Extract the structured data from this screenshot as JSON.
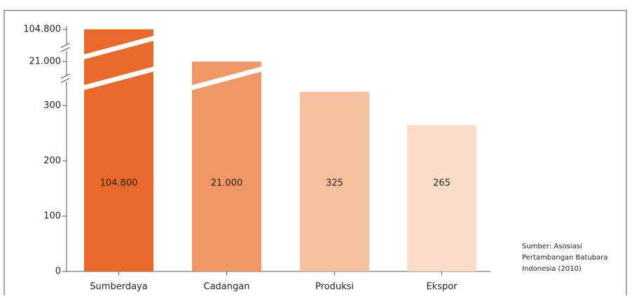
{
  "chart_data": {
    "type": "bar",
    "categories": [
      "Sumberdaya",
      "Cadangan",
      "Produksi",
      "Ekspor"
    ],
    "values": [
      104800,
      21000,
      325,
      265
    ],
    "value_labels": [
      "104.800",
      "21.000",
      "325",
      "265"
    ],
    "colors": [
      "#e8692a",
      "#ef9866",
      "#f5c09e",
      "#fadcc8"
    ],
    "ylim": [
      0,
      104800
    ],
    "yticks": [
      0,
      100,
      200,
      300,
      {
        "value": 21000,
        "label": "21.000"
      },
      {
        "value": 104800,
        "label": "104.800"
      }
    ],
    "broken_axis": true,
    "source": [
      "Sumber: Asosiasi",
      "Pertambangan Batubara",
      "Indonesia (2010)"
    ]
  }
}
